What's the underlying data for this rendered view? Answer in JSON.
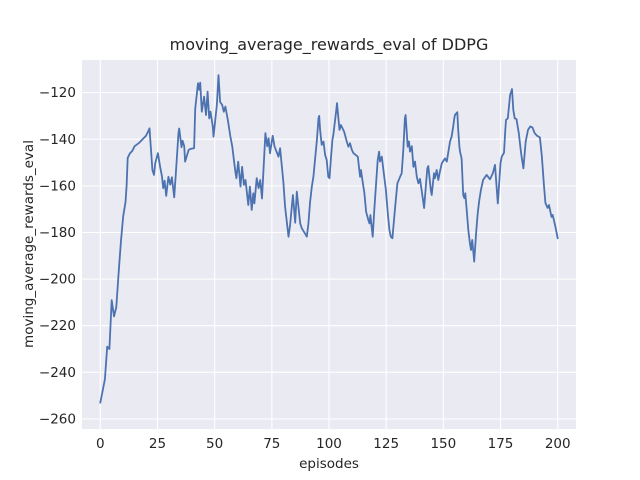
{
  "figure": {
    "title": "moving_average_rewards_eval of DDPG",
    "xlabel": "episodes",
    "ylabel": "moving_average_rewards_eval"
  },
  "colors": {
    "figure_background": "#ffffff",
    "axes_background": "#eaeaf2",
    "grid": "#ffffff",
    "line": "#4c72b0",
    "text": "#262626"
  },
  "chart_data": {
    "type": "line",
    "title": "moving_average_rewards_eval of DDPG",
    "xlabel": "episodes",
    "ylabel": "moving_average_rewards_eval",
    "grid": true,
    "legend": false,
    "x_ticks": [
      0,
      25,
      50,
      75,
      100,
      125,
      150,
      175,
      200
    ],
    "y_ticks": [
      -120,
      -140,
      -160,
      -180,
      -200,
      -220,
      -240,
      -260
    ],
    "xlim": [
      -8,
      208
    ],
    "ylim": [
      -264.3,
      -106
    ],
    "series": [
      {
        "name": "moving_average_rewards_eval",
        "color": "#4c72b0",
        "points": [
          [
            0,
            -253
          ],
          [
            1,
            -248
          ],
          [
            2,
            -243
          ],
          [
            3,
            -229
          ],
          [
            4,
            -230
          ],
          [
            5,
            -209
          ],
          [
            6,
            -216
          ],
          [
            7,
            -212
          ],
          [
            8,
            -197.5
          ],
          [
            9,
            -184
          ],
          [
            10,
            -173
          ],
          [
            11,
            -167
          ],
          [
            11.5,
            -160
          ],
          [
            12,
            -148
          ],
          [
            13,
            -146
          ],
          [
            14,
            -145
          ],
          [
            15,
            -143
          ],
          [
            17,
            -141.5
          ],
          [
            18,
            -140.5
          ],
          [
            20,
            -138.5
          ],
          [
            21,
            -136.5
          ],
          [
            21.5,
            -135.3
          ],
          [
            22.8,
            -153.2
          ],
          [
            23.5,
            -155.3
          ],
          [
            24,
            -150.3
          ],
          [
            25.2,
            -146
          ],
          [
            26.2,
            -152
          ],
          [
            27,
            -156
          ],
          [
            27.5,
            -161
          ],
          [
            28.1,
            -157.8
          ],
          [
            28.8,
            -164.3
          ],
          [
            29.8,
            -156.1
          ],
          [
            30.6,
            -159.5
          ],
          [
            31.3,
            -156.3
          ],
          [
            32.3,
            -164.9
          ],
          [
            33,
            -155
          ],
          [
            34.2,
            -137.2
          ],
          [
            34.5,
            -135.4
          ],
          [
            35.5,
            -143.4
          ],
          [
            36,
            -140.6
          ],
          [
            36.7,
            -142.9
          ],
          [
            37.1,
            -149.6
          ],
          [
            38.6,
            -144.6
          ],
          [
            39.3,
            -144.2
          ],
          [
            41,
            -143.8
          ],
          [
            41.5,
            -127
          ],
          [
            42.7,
            -116
          ],
          [
            43.3,
            -118.8
          ],
          [
            43.7,
            -115.7
          ],
          [
            44.4,
            -128.2
          ],
          [
            45.4,
            -121.7
          ],
          [
            46.2,
            -129.6
          ],
          [
            46.9,
            -119.6
          ],
          [
            47.6,
            -131
          ],
          [
            48.2,
            -128.2
          ],
          [
            49.2,
            -134.6
          ],
          [
            49.5,
            -138.9
          ],
          [
            51,
            -125
          ],
          [
            51.7,
            -112.5
          ],
          [
            52.4,
            -124
          ],
          [
            53.3,
            -125.3
          ],
          [
            54,
            -128.2
          ],
          [
            54.7,
            -126
          ],
          [
            55.9,
            -132.4
          ],
          [
            56.9,
            -138.9
          ],
          [
            57.7,
            -143.2
          ],
          [
            58.4,
            -148.9
          ],
          [
            59.1,
            -154.3
          ],
          [
            59.5,
            -156.7
          ],
          [
            60.3,
            -149.6
          ],
          [
            61.3,
            -160.3
          ],
          [
            62,
            -151.8
          ],
          [
            62.8,
            -159.6
          ],
          [
            63.5,
            -157.5
          ],
          [
            64.7,
            -168.2
          ],
          [
            65.4,
            -160.3
          ],
          [
            66.2,
            -170.3
          ],
          [
            66.9,
            -163.2
          ],
          [
            67.4,
            -167.5
          ],
          [
            68.4,
            -156.7
          ],
          [
            69.2,
            -161
          ],
          [
            69.9,
            -157.5
          ],
          [
            70.7,
            -165.4
          ],
          [
            72.2,
            -137.4
          ],
          [
            73,
            -143
          ],
          [
            73.6,
            -139.6
          ],
          [
            74.2,
            -146
          ],
          [
            75.4,
            -138.5
          ],
          [
            76.2,
            -143.2
          ],
          [
            77.9,
            -147.5
          ],
          [
            78.6,
            -143.9
          ],
          [
            80,
            -158
          ],
          [
            80.8,
            -169
          ],
          [
            82.3,
            -181.8
          ],
          [
            83,
            -176.8
          ],
          [
            84.2,
            -163.9
          ],
          [
            85.2,
            -175.8
          ],
          [
            85.9,
            -162.5
          ],
          [
            87.4,
            -176.1
          ],
          [
            88.1,
            -178.2
          ],
          [
            90,
            -181.2
          ],
          [
            90.3,
            -181.8
          ],
          [
            91,
            -176.2
          ],
          [
            91.7,
            -167.3
          ],
          [
            92.5,
            -160.4
          ],
          [
            93.2,
            -156.1
          ],
          [
            93.9,
            -148.9
          ],
          [
            94.7,
            -140.3
          ],
          [
            95.4,
            -131
          ],
          [
            95.7,
            -130
          ],
          [
            96.1,
            -136
          ],
          [
            96.8,
            -142.4
          ],
          [
            97.6,
            -141
          ],
          [
            98.3,
            -146.7
          ],
          [
            99,
            -148.9
          ],
          [
            99.7,
            -156.1
          ],
          [
            100.2,
            -156.7
          ],
          [
            100.8,
            -148.9
          ],
          [
            101.5,
            -140.3
          ],
          [
            101.9,
            -138.2
          ],
          [
            103.1,
            -128.2
          ],
          [
            103.5,
            -124.5
          ],
          [
            104.1,
            -131
          ],
          [
            104.6,
            -136
          ],
          [
            105.2,
            -133.9
          ],
          [
            106.6,
            -136.7
          ],
          [
            107.8,
            -141
          ],
          [
            108.5,
            -143.2
          ],
          [
            109.2,
            -141.7
          ],
          [
            110,
            -144.6
          ],
          [
            110.7,
            -146
          ],
          [
            112.6,
            -147.5
          ],
          [
            113.6,
            -156.1
          ],
          [
            114,
            -153.2
          ],
          [
            114.6,
            -157.5
          ],
          [
            115.5,
            -163.2
          ],
          [
            116.2,
            -171.1
          ],
          [
            117.2,
            -174.6
          ],
          [
            117.7,
            -176.1
          ],
          [
            118.1,
            -172.5
          ],
          [
            118.7,
            -178.2
          ],
          [
            119.1,
            -181.8
          ],
          [
            119.8,
            -170.3
          ],
          [
            120.6,
            -158.9
          ],
          [
            121.3,
            -148.9
          ],
          [
            121.9,
            -145.3
          ],
          [
            122.3,
            -149.6
          ],
          [
            123.1,
            -147.5
          ],
          [
            123.8,
            -153.2
          ],
          [
            124.9,
            -161.8
          ],
          [
            125.7,
            -171.8
          ],
          [
            126.4,
            -178.9
          ],
          [
            127,
            -181.8
          ],
          [
            127.7,
            -182.5
          ],
          [
            128.4,
            -174.6
          ],
          [
            129.2,
            -166.1
          ],
          [
            129.9,
            -158.9
          ],
          [
            131.1,
            -156.1
          ],
          [
            131.8,
            -154.6
          ],
          [
            132.5,
            -144.6
          ],
          [
            133.2,
            -131
          ],
          [
            133.5,
            -129.6
          ],
          [
            134,
            -137.4
          ],
          [
            134.4,
            -143.2
          ],
          [
            135,
            -141
          ],
          [
            135.4,
            -145.3
          ],
          [
            136.2,
            -143
          ],
          [
            136.9,
            -151.8
          ],
          [
            137.6,
            -149.6
          ],
          [
            138.4,
            -156.1
          ],
          [
            139.1,
            -158.9
          ],
          [
            139.8,
            -157
          ],
          [
            140.5,
            -161.8
          ],
          [
            141.3,
            -167.5
          ],
          [
            141.6,
            -169.5
          ],
          [
            143,
            -152.5
          ],
          [
            143.4,
            -151.5
          ],
          [
            144.5,
            -161.8
          ],
          [
            144.9,
            -163.9
          ],
          [
            145.9,
            -154.6
          ],
          [
            146.3,
            -156.7
          ],
          [
            147.1,
            -153.2
          ],
          [
            147.8,
            -157.5
          ],
          [
            148.5,
            -153.9
          ],
          [
            149.3,
            -150.3
          ],
          [
            150.7,
            -148.2
          ],
          [
            151.5,
            -149.6
          ],
          [
            152.2,
            -145.3
          ],
          [
            152.9,
            -141
          ],
          [
            153.6,
            -138.9
          ],
          [
            154.3,
            -134.6
          ],
          [
            154.8,
            -131
          ],
          [
            155.1,
            -129.5
          ],
          [
            156.1,
            -128.4
          ],
          [
            156.5,
            -136
          ],
          [
            157,
            -143.2
          ],
          [
            157.3,
            -145.3
          ],
          [
            158,
            -148.2
          ],
          [
            158.7,
            -163.9
          ],
          [
            159.2,
            -165.3
          ],
          [
            159.6,
            -163.2
          ],
          [
            160.2,
            -170.3
          ],
          [
            160.9,
            -178.9
          ],
          [
            161.6,
            -184.6
          ],
          [
            162.1,
            -187.5
          ],
          [
            162.6,
            -183.2
          ],
          [
            163.1,
            -188.2
          ],
          [
            163.5,
            -192.5
          ],
          [
            164.3,
            -180.3
          ],
          [
            165,
            -171.8
          ],
          [
            165.7,
            -166.1
          ],
          [
            166.4,
            -161.8
          ],
          [
            167.4,
            -157.5
          ],
          [
            168.9,
            -155.3
          ],
          [
            170.4,
            -157.2
          ],
          [
            171.6,
            -154.6
          ],
          [
            172.6,
            -151
          ],
          [
            173.8,
            -167.5
          ],
          [
            174.5,
            -157.5
          ],
          [
            175,
            -150.3
          ],
          [
            175.5,
            -147.5
          ],
          [
            176.5,
            -145.8
          ],
          [
            177.1,
            -136
          ],
          [
            177.4,
            -131.7
          ],
          [
            178.2,
            -131
          ],
          [
            179.2,
            -121
          ],
          [
            180,
            -118.5
          ],
          [
            180.6,
            -127.4
          ],
          [
            181.2,
            -131
          ],
          [
            182,
            -131.4
          ],
          [
            183,
            -137.4
          ],
          [
            184,
            -146
          ],
          [
            185,
            -152.5
          ],
          [
            186,
            -141
          ],
          [
            187,
            -136
          ],
          [
            188,
            -134.5
          ],
          [
            189,
            -135
          ],
          [
            190,
            -137.5
          ],
          [
            191,
            -138.5
          ],
          [
            192.2,
            -139.2
          ],
          [
            193.1,
            -147.6
          ],
          [
            194,
            -160
          ],
          [
            194.6,
            -167.3
          ],
          [
            195.6,
            -169.5
          ],
          [
            196.2,
            -168.2
          ],
          [
            197.3,
            -173.3
          ],
          [
            197.8,
            -172.5
          ],
          [
            199,
            -177.5
          ],
          [
            200,
            -182.5
          ]
        ]
      }
    ]
  }
}
